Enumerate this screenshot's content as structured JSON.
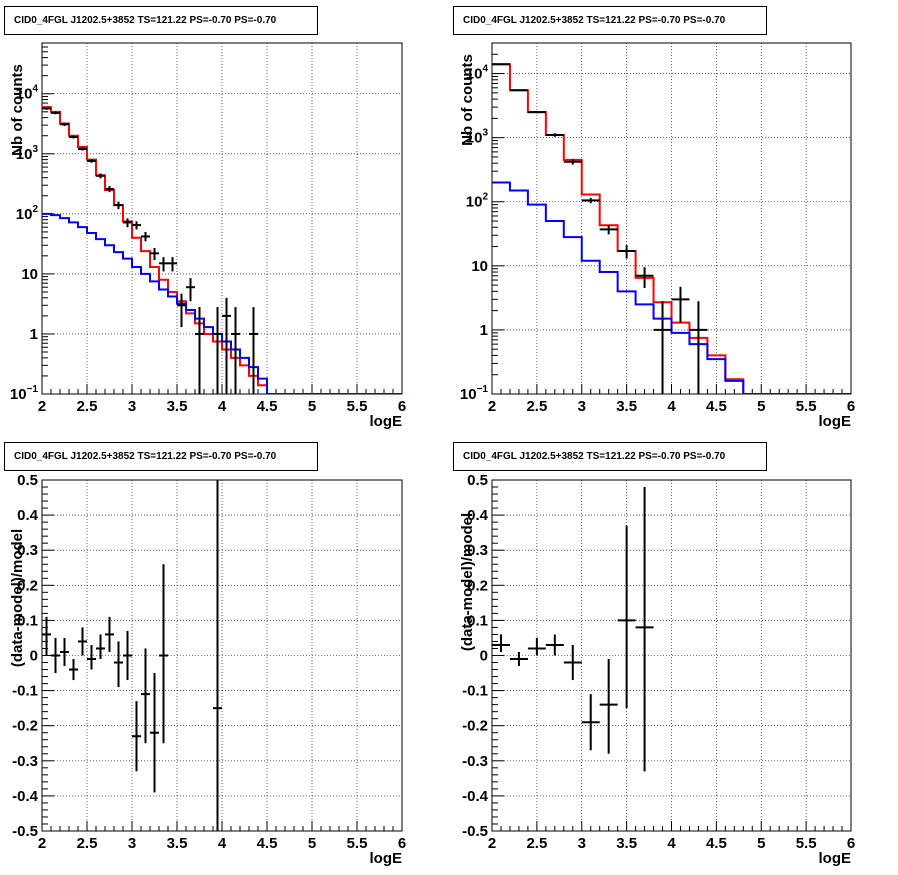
{
  "colors": {
    "data": "#000000",
    "total_model": "#ff0000",
    "source_model": "#0000ff",
    "grid": "#000000",
    "background": "#ffffff"
  },
  "chart_data": [
    {
      "type": "line",
      "title": "CID0_4FGL J1202.5+3852 TS=121.22 PS=-0.70 PS=-0.70",
      "xlabel": "logE",
      "ylabel": "Nb of counts",
      "xlim": [
        2,
        6
      ],
      "ylim": [
        0.1,
        70000
      ],
      "yscale": "log",
      "grid": true,
      "xticks": [
        "2",
        "2.5",
        "3",
        "3.5",
        "4",
        "4.5",
        "5",
        "5.5",
        "6"
      ],
      "yticks": [
        {
          "value": 0.1,
          "label": "10",
          "exp": "−1"
        },
        {
          "value": 1,
          "label": "1",
          "exp": ""
        },
        {
          "value": 10,
          "label": "10",
          "exp": ""
        },
        {
          "value": 100,
          "label": "10",
          "exp": "2"
        },
        {
          "value": 1000,
          "label": "10",
          "exp": "3"
        },
        {
          "value": 10000,
          "label": "10",
          "exp": "4"
        }
      ],
      "bin_edges": [
        2.0,
        2.1,
        2.2,
        2.3,
        2.4,
        2.5,
        2.6,
        2.7,
        2.8,
        2.9,
        3.0,
        3.1,
        3.2,
        3.3,
        3.4,
        3.5,
        3.6,
        3.7,
        3.8,
        3.9,
        4.0,
        4.1,
        4.2,
        4.3,
        4.4,
        4.5,
        4.6,
        4.7,
        4.8,
        4.9,
        5.0,
        5.1,
        5.2,
        5.3,
        5.4,
        5.5,
        5.6,
        5.7,
        5.8,
        5.9,
        6.0
      ],
      "series": [
        {
          "kind": "step",
          "color": "#ff0000",
          "values": [
            6000,
            5000,
            3200,
            2000,
            1300,
            800,
            440,
            250,
            140,
            75,
            40,
            24,
            13,
            8,
            5,
            3.5,
            2.2,
            1.5,
            1.0,
            0.75,
            0.55,
            0.4,
            0.3,
            0.2,
            0.14,
            0.1,
            0.1,
            0.1,
            0.1,
            0.1,
            0.1,
            0.1,
            0.1,
            0.1,
            0.1,
            0.1,
            0.1,
            0.1,
            0.1,
            0.1
          ]
        },
        {
          "kind": "step",
          "color": "#0000ff",
          "values": [
            100,
            95,
            85,
            72,
            60,
            48,
            38,
            30,
            23,
            18,
            13,
            10,
            7.5,
            5.5,
            4.2,
            3.2,
            2.5,
            1.8,
            1.3,
            1.0,
            0.75,
            0.55,
            0.4,
            0.28,
            0.18,
            0.1,
            0.1,
            0.1,
            0.1,
            0.1,
            0.1,
            0.1,
            0.1,
            0.1,
            0.1,
            0.1,
            0.1,
            0.1,
            0.1,
            0.1
          ]
        },
        {
          "kind": "points",
          "color": "#000000",
          "points": [
            {
              "x": 2.05,
              "y": 5700,
              "lo": 5400,
              "hi": 6000
            },
            {
              "x": 2.15,
              "y": 4800,
              "lo": 4550,
              "hi": 5050
            },
            {
              "x": 2.25,
              "y": 3100,
              "lo": 2900,
              "hi": 3300
            },
            {
              "x": 2.35,
              "y": 1900,
              "lo": 1800,
              "hi": 2000
            },
            {
              "x": 2.45,
              "y": 1200,
              "lo": 1130,
              "hi": 1270
            },
            {
              "x": 2.55,
              "y": 760,
              "lo": 710,
              "hi": 810
            },
            {
              "x": 2.65,
              "y": 430,
              "lo": 390,
              "hi": 470
            },
            {
              "x": 2.75,
              "y": 260,
              "lo": 230,
              "hi": 290
            },
            {
              "x": 2.85,
              "y": 140,
              "lo": 120,
              "hi": 160
            },
            {
              "x": 2.95,
              "y": 72,
              "lo": 60,
              "hi": 84
            },
            {
              "x": 3.05,
              "y": 65,
              "lo": 55,
              "hi": 75
            },
            {
              "x": 3.15,
              "y": 42,
              "lo": 35,
              "hi": 50
            },
            {
              "x": 3.25,
              "y": 22,
              "lo": 17,
              "hi": 27
            },
            {
              "x": 3.35,
              "y": 15,
              "lo": 11,
              "hi": 19
            },
            {
              "x": 3.45,
              "y": 15,
              "lo": 11,
              "hi": 19
            },
            {
              "x": 3.55,
              "y": 3,
              "lo": 1.3,
              "hi": 4.7
            },
            {
              "x": 3.65,
              "y": 6,
              "lo": 3.5,
              "hi": 8.5
            },
            {
              "x": 3.75,
              "y": 1,
              "lo": 0.1,
              "hi": 2.8
            },
            {
              "x": 3.95,
              "y": 1,
              "lo": 0.1,
              "hi": 2.8
            },
            {
              "x": 4.05,
              "y": 2,
              "lo": 0.1,
              "hi": 4.0
            },
            {
              "x": 4.15,
              "y": 1,
              "lo": 0.1,
              "hi": 2.8
            },
            {
              "x": 4.35,
              "y": 1,
              "lo": 0.1,
              "hi": 2.8
            }
          ]
        }
      ]
    },
    {
      "type": "line",
      "title": "CID0_4FGL J1202.5+3852 TS=121.22 PS=-0.70 PS=-0.70",
      "xlabel": "logE",
      "ylabel": "Nb of counts",
      "xlim": [
        2,
        6
      ],
      "ylim": [
        0.1,
        30000
      ],
      "yscale": "log",
      "grid": true,
      "xticks": [
        "2",
        "2.5",
        "3",
        "3.5",
        "4",
        "4.5",
        "5",
        "5.5",
        "6"
      ],
      "yticks": [
        {
          "value": 0.1,
          "label": "10",
          "exp": "−1"
        },
        {
          "value": 1,
          "label": "1",
          "exp": ""
        },
        {
          "value": 10,
          "label": "10",
          "exp": ""
        },
        {
          "value": 100,
          "label": "10",
          "exp": "2"
        },
        {
          "value": 1000,
          "label": "10",
          "exp": "3"
        },
        {
          "value": 10000,
          "label": "10",
          "exp": "4"
        }
      ],
      "bin_edges": [
        2.0,
        2.2,
        2.4,
        2.6,
        2.8,
        3.0,
        3.2,
        3.4,
        3.6,
        3.8,
        4.0,
        4.2,
        4.4,
        4.6,
        4.8,
        5.0,
        5.2,
        5.4,
        5.6,
        5.8,
        6.0
      ],
      "series": [
        {
          "kind": "step",
          "color": "#ff0000",
          "values": [
            14000,
            5500,
            2500,
            1100,
            450,
            130,
            43,
            17,
            6.5,
            2.7,
            1.3,
            0.75,
            0.4,
            0.17,
            0.1,
            0.1,
            0.1,
            0.1,
            0.1,
            0.1
          ]
        },
        {
          "kind": "step",
          "color": "#0000ff",
          "values": [
            200,
            150,
            90,
            50,
            28,
            12,
            8,
            4,
            2.5,
            1.5,
            0.9,
            0.6,
            0.35,
            0.16,
            0.1,
            0.1,
            0.1,
            0.1,
            0.1,
            0.1
          ]
        },
        {
          "kind": "points",
          "color": "#000000",
          "points": [
            {
              "x": 2.1,
              "y": 14000,
              "lo": 13700,
              "hi": 14300
            },
            {
              "x": 2.3,
              "y": 5500,
              "lo": 5350,
              "hi": 5650
            },
            {
              "x": 2.5,
              "y": 2500,
              "lo": 2400,
              "hi": 2600
            },
            {
              "x": 2.7,
              "y": 1100,
              "lo": 1030,
              "hi": 1170
            },
            {
              "x": 2.9,
              "y": 420,
              "lo": 380,
              "hi": 460
            },
            {
              "x": 3.1,
              "y": 105,
              "lo": 95,
              "hi": 115
            },
            {
              "x": 3.3,
              "y": 37,
              "lo": 31,
              "hi": 43
            },
            {
              "x": 3.5,
              "y": 17,
              "lo": 13,
              "hi": 21
            },
            {
              "x": 3.7,
              "y": 7,
              "lo": 4.5,
              "hi": 9.5
            },
            {
              "x": 3.9,
              "y": 1,
              "lo": 0.1,
              "hi": 2.8
            },
            {
              "x": 4.1,
              "y": 3,
              "lo": 1.3,
              "hi": 4.7
            },
            {
              "x": 4.3,
              "y": 1,
              "lo": 0.1,
              "hi": 2.8
            }
          ]
        }
      ]
    },
    {
      "type": "scatter",
      "title": "CID0_4FGL J1202.5+3852 TS=121.22 PS=-0.70 PS=-0.70",
      "xlabel": "logE",
      "ylabel": "(data-model)/model",
      "xlim": [
        2,
        6
      ],
      "ylim": [
        -0.5,
        0.5
      ],
      "grid": true,
      "xticks": [
        "2",
        "2.5",
        "3",
        "3.5",
        "4",
        "4.5",
        "5",
        "5.5",
        "6"
      ],
      "yticks": [
        "-0.5",
        "-0.4",
        "-0.3",
        "-0.2",
        "-0.1",
        "0",
        "0.1",
        "0.2",
        "0.3",
        "0.4",
        "0.5"
      ],
      "x_half_width": 0.05,
      "series": [
        {
          "kind": "points",
          "color": "#000000",
          "points": [
            {
              "x": 2.05,
              "y": 0.06,
              "lo": 0.0,
              "hi": 0.11
            },
            {
              "x": 2.15,
              "y": 0.0,
              "lo": -0.05,
              "hi": 0.05
            },
            {
              "x": 2.25,
              "y": 0.01,
              "lo": -0.03,
              "hi": 0.05
            },
            {
              "x": 2.35,
              "y": -0.04,
              "lo": -0.07,
              "hi": -0.01
            },
            {
              "x": 2.45,
              "y": 0.04,
              "lo": 0.0,
              "hi": 0.08
            },
            {
              "x": 2.55,
              "y": -0.01,
              "lo": -0.04,
              "hi": 0.03
            },
            {
              "x": 2.65,
              "y": 0.02,
              "lo": -0.01,
              "hi": 0.06
            },
            {
              "x": 2.75,
              "y": 0.06,
              "lo": 0.01,
              "hi": 0.11
            },
            {
              "x": 2.85,
              "y": -0.02,
              "lo": -0.09,
              "hi": 0.04
            },
            {
              "x": 2.95,
              "y": 0.0,
              "lo": -0.07,
              "hi": 0.07
            },
            {
              "x": 3.05,
              "y": -0.23,
              "lo": -0.33,
              "hi": -0.13
            },
            {
              "x": 3.15,
              "y": -0.11,
              "lo": -0.25,
              "hi": 0.02
            },
            {
              "x": 3.25,
              "y": -0.22,
              "lo": -0.39,
              "hi": -0.05
            },
            {
              "x": 3.35,
              "y": 0.0,
              "lo": -0.25,
              "hi": 0.26
            },
            {
              "x": 3.95,
              "y": -0.15,
              "lo": -0.5,
              "hi": 0.5
            }
          ]
        }
      ]
    },
    {
      "type": "scatter",
      "title": "CID0_4FGL J1202.5+3852 TS=121.22 PS=-0.70 PS=-0.70",
      "xlabel": "logE",
      "ylabel": "(data-model)/model",
      "xlim": [
        2,
        6
      ],
      "ylim": [
        -0.5,
        0.5
      ],
      "grid": true,
      "xticks": [
        "2",
        "2.5",
        "3",
        "3.5",
        "4",
        "4.5",
        "5",
        "5.5",
        "6"
      ],
      "yticks": [
        "-0.5",
        "-0.4",
        "-0.3",
        "-0.2",
        "-0.1",
        "0",
        "0.1",
        "0.2",
        "0.3",
        "0.4",
        "0.5"
      ],
      "x_half_width": 0.1,
      "series": [
        {
          "kind": "points",
          "color": "#000000",
          "points": [
            {
              "x": 2.1,
              "y": 0.03,
              "lo": 0.01,
              "hi": 0.06
            },
            {
              "x": 2.3,
              "y": -0.01,
              "lo": -0.03,
              "hi": 0.01
            },
            {
              "x": 2.5,
              "y": 0.02,
              "lo": 0.0,
              "hi": 0.05
            },
            {
              "x": 2.7,
              "y": 0.03,
              "lo": 0.0,
              "hi": 0.06
            },
            {
              "x": 2.9,
              "y": -0.02,
              "lo": -0.07,
              "hi": 0.03
            },
            {
              "x": 3.1,
              "y": -0.19,
              "lo": -0.27,
              "hi": -0.11
            },
            {
              "x": 3.3,
              "y": -0.14,
              "lo": -0.28,
              "hi": -0.01
            },
            {
              "x": 3.5,
              "y": 0.1,
              "lo": -0.15,
              "hi": 0.37
            },
            {
              "x": 3.7,
              "y": 0.08,
              "lo": -0.33,
              "hi": 0.48
            }
          ]
        }
      ]
    }
  ]
}
